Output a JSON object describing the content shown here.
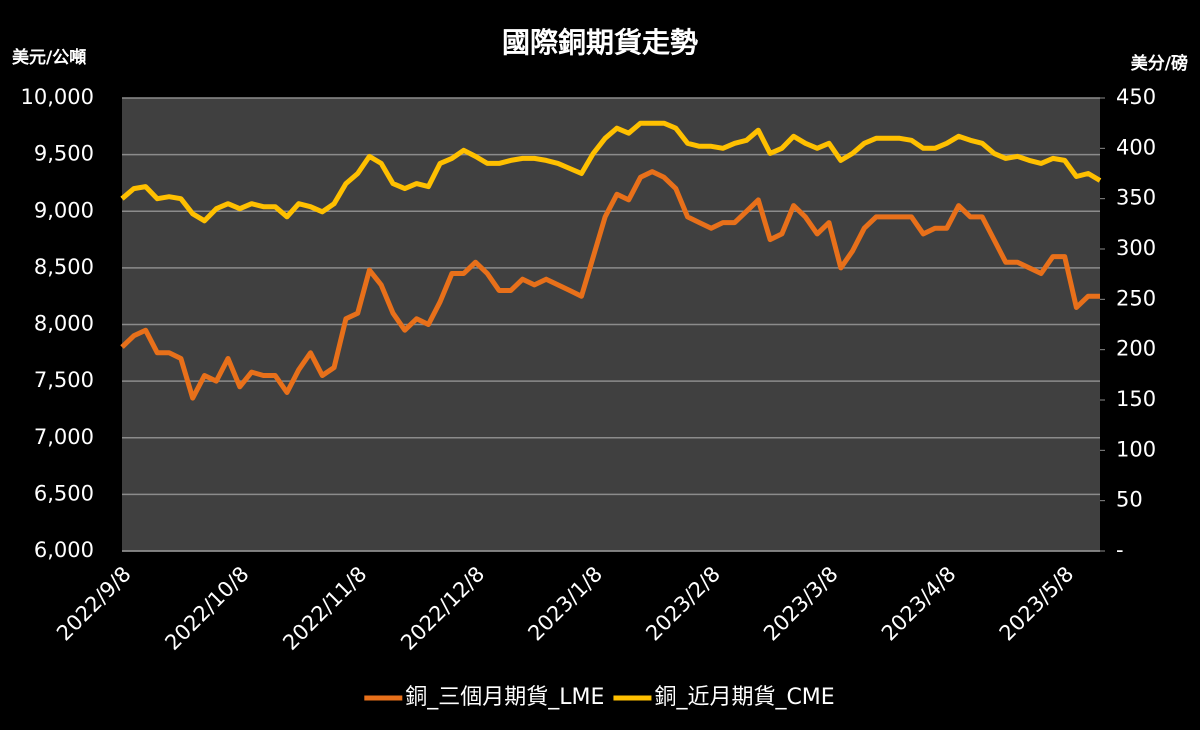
{
  "chart_data": {
    "type": "line",
    "title": "國際銅期貨走勢",
    "y_label": "美元/公噸",
    "y2_label": "美分/磅",
    "categories": [
      "2022/9/8",
      null,
      null,
      null,
      null,
      null,
      null,
      null,
      null,
      null,
      "2022/10/8",
      null,
      null,
      null,
      null,
      null,
      null,
      null,
      null,
      null,
      "2022/11/8",
      null,
      null,
      null,
      null,
      null,
      null,
      null,
      null,
      null,
      "2022/12/8",
      null,
      null,
      null,
      null,
      null,
      null,
      null,
      null,
      null,
      "2023/1/8",
      null,
      null,
      null,
      null,
      null,
      null,
      null,
      null,
      null,
      "2023/2/8",
      null,
      null,
      null,
      null,
      null,
      null,
      null,
      null,
      null,
      "2023/3/8",
      null,
      null,
      null,
      null,
      null,
      null,
      null,
      null,
      null,
      "2023/4/8",
      null,
      null,
      null,
      null,
      null,
      null,
      null,
      null,
      null,
      "2023/5/8",
      null,
      null,
      null
    ],
    "series": [
      {
        "name": "銅_三個月期貨_LME",
        "color": "#e8701a",
        "axis": "y",
        "values": [
          7800,
          7900,
          7950,
          7750,
          7750,
          7700,
          7350,
          7550,
          7500,
          7700,
          7450,
          7580,
          7550,
          7550,
          7400,
          7600,
          7750,
          7550,
          7620,
          8050,
          8100,
          8480,
          8350,
          8100,
          7950,
          8050,
          8000,
          8200,
          8450,
          8450,
          8550,
          8450,
          8300,
          8300,
          8400,
          8350,
          8400,
          8350,
          8300,
          8250,
          8600,
          8950,
          9150,
          9100,
          9300,
          9350,
          9300,
          9200,
          8950,
          8900,
          8850,
          8900,
          8900,
          9000,
          9100,
          8750,
          8800,
          9050,
          8950,
          8800,
          8900,
          8500,
          8650,
          8850,
          8950,
          8950,
          8950,
          8950,
          8800,
          8850,
          8850,
          9050,
          8950,
          8950,
          8750,
          8550,
          8550,
          8500,
          8450,
          8600,
          8600,
          8150,
          8250,
          8250
        ]
      },
      {
        "name": "銅_近月期貨_CME",
        "color": "#ffc000",
        "axis": "y2",
        "values": [
          350,
          360,
          362,
          350,
          352,
          350,
          335,
          328,
          340,
          345,
          340,
          345,
          342,
          342,
          332,
          345,
          342,
          337,
          345,
          365,
          375,
          392,
          385,
          365,
          360,
          365,
          362,
          385,
          390,
          398,
          392,
          385,
          385,
          388,
          390,
          390,
          388,
          385,
          380,
          375,
          395,
          410,
          420,
          415,
          425,
          425,
          425,
          420,
          405,
          402,
          402,
          400,
          405,
          408,
          418,
          395,
          400,
          412,
          405,
          400,
          405,
          388,
          395,
          405,
          410,
          410,
          410,
          408,
          400,
          400,
          405,
          412,
          408,
          405,
          395,
          390,
          392,
          388,
          385,
          390,
          388,
          372,
          375,
          368
        ]
      }
    ],
    "ylim": [
      6000,
      10000
    ],
    "yticks": [
      {
        "value": 6000,
        "label": "6,000"
      },
      {
        "value": 6500,
        "label": "6,500"
      },
      {
        "value": 7000,
        "label": "7,000"
      },
      {
        "value": 7500,
        "label": "7,500"
      },
      {
        "value": 8000,
        "label": "8,000"
      },
      {
        "value": 8500,
        "label": "8,500"
      },
      {
        "value": 9000,
        "label": "9,000"
      },
      {
        "value": 9500,
        "label": "9,500"
      },
      {
        "value": 10000,
        "label": "10,000"
      }
    ],
    "y2lim": [
      0,
      450
    ],
    "y2ticks": [
      {
        "value": 0,
        "label": "-"
      },
      50,
      100,
      150,
      200,
      250,
      300,
      350,
      400,
      450
    ],
    "grid": true,
    "legend": "bottom"
  }
}
